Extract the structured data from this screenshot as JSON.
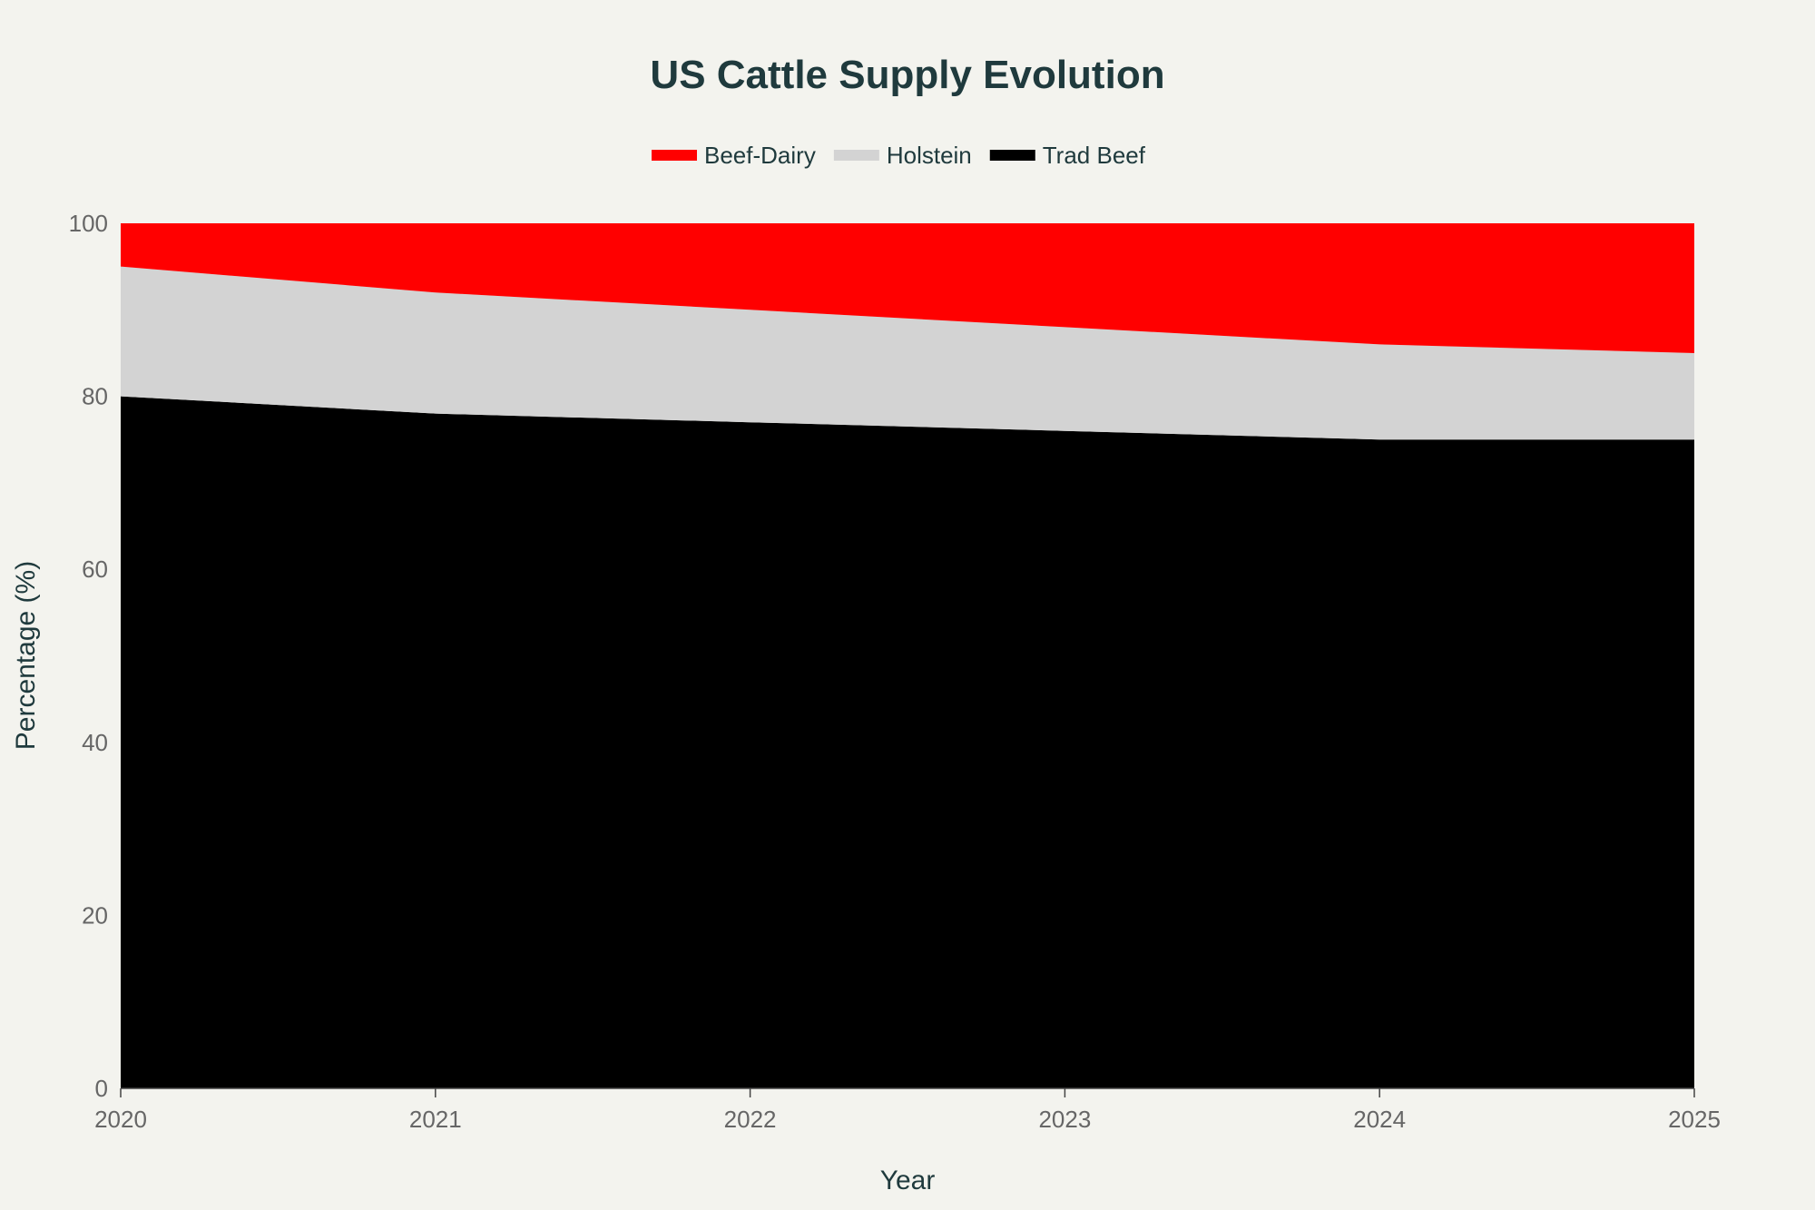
{
  "chart_data": {
    "type": "area",
    "stacked": true,
    "title": "US Cattle Supply Evolution",
    "xlabel": "Year",
    "ylabel": "Percentage (%)",
    "x": [
      2020,
      2021,
      2022,
      2023,
      2024,
      2025
    ],
    "x_tick_labels": [
      "2020",
      "2021",
      "2022",
      "2023",
      "2024",
      "2025"
    ],
    "ylim": [
      0,
      100
    ],
    "y_ticks": [
      0,
      20,
      40,
      60,
      80,
      100
    ],
    "y_tick_labels": [
      "0",
      "20",
      "40",
      "60",
      "80",
      "100"
    ],
    "grid": false,
    "legend_position": "top-center",
    "series": [
      {
        "name": "Trad Beef",
        "color": "#000000",
        "values": [
          80,
          78,
          77,
          76,
          75,
          75
        ]
      },
      {
        "name": "Holstein",
        "color": "#d3d3d3",
        "values": [
          15,
          14,
          13,
          12,
          11,
          10
        ]
      },
      {
        "name": "Beef-Dairy",
        "color": "#ff0000",
        "values": [
          5,
          8,
          10,
          12,
          14,
          15
        ]
      }
    ],
    "legend_order": [
      "Beef-Dairy",
      "Holstein",
      "Trad Beef"
    ]
  }
}
